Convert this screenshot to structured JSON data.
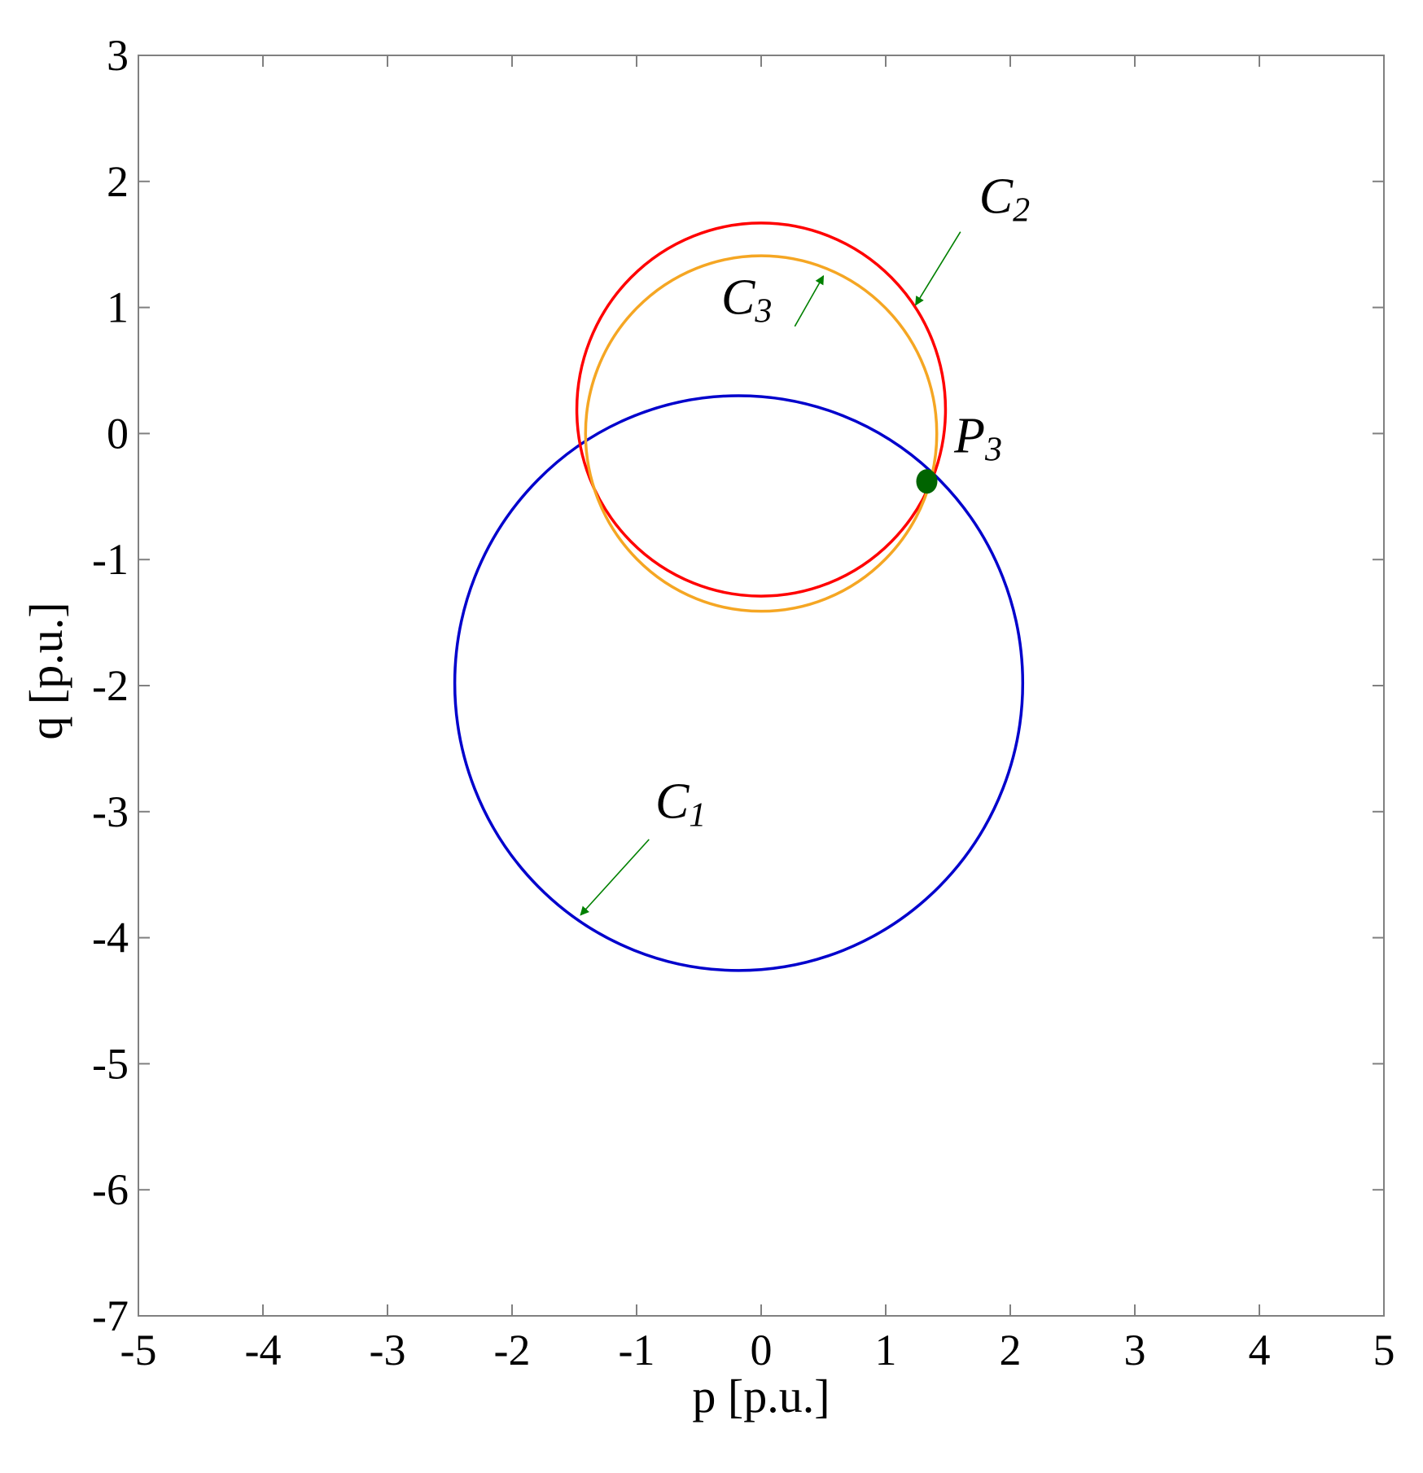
{
  "chart_data": {
    "type": "scatter",
    "xlabel": "p [p.u.]",
    "ylabel": "q [p.u.]",
    "xlim": [
      -5,
      5
    ],
    "ylim": [
      -7,
      3
    ],
    "xticks": [
      -5,
      -4,
      -3,
      -2,
      -1,
      0,
      1,
      2,
      3,
      4,
      5
    ],
    "yticks": [
      -7,
      -6,
      -5,
      -4,
      -3,
      -2,
      -1,
      0,
      1,
      2,
      3
    ],
    "grid": false,
    "circles": [
      {
        "name": "C1",
        "center": [
          -0.18,
          -1.98
        ],
        "radius": 2.28,
        "color": "#0000cc"
      },
      {
        "name": "C2",
        "center": [
          0.0,
          0.19
        ],
        "radius": 1.48,
        "color": "#ff0000"
      },
      {
        "name": "C3",
        "center": [
          0.0,
          0.0
        ],
        "radius": 1.41,
        "color": "#f5a623"
      }
    ],
    "points": [
      {
        "name": "P3",
        "x": 1.33,
        "y": -0.38,
        "color": "#006400"
      }
    ],
    "annotations": [
      {
        "label": "C",
        "sub": "1",
        "text_at": [
          -0.85,
          -3.05
        ],
        "arrow_from": [
          -0.9,
          -3.22
        ],
        "arrow_to": [
          -1.45,
          -3.82
        ]
      },
      {
        "label": "C",
        "sub": "2",
        "text_at": [
          1.75,
          1.75
        ],
        "arrow_from": [
          1.6,
          1.6
        ],
        "arrow_to": [
          1.24,
          1.02
        ]
      },
      {
        "label": "C",
        "sub": "3",
        "text_at": [
          -0.32,
          0.95
        ],
        "arrow_from": [
          0.27,
          0.85
        ],
        "arrow_to": [
          0.5,
          1.25
        ]
      },
      {
        "label": "P",
        "sub": "3",
        "text_at": [
          1.55,
          -0.15
        ]
      }
    ],
    "annotation_arrow_color": "#008000",
    "axis_color": "#808080"
  }
}
